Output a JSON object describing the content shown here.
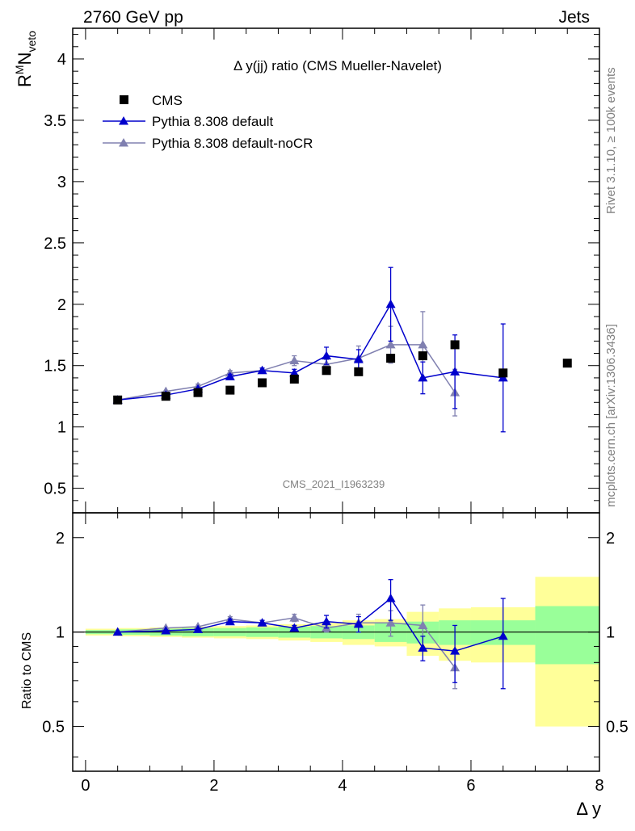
{
  "header": {
    "energy_label": "2760 GeV pp",
    "process_label": "Jets",
    "plot_title": "Δ y(jj) ratio (CMS Mueller-Navelet)",
    "watermark": "CMS_2021_I1963239",
    "side_text_top": "Rivet 3.1.10, ≥ 100k events",
    "side_text_bottom": "mcplots.cern.ch [arXiv:1306.3436]"
  },
  "colors": {
    "cms": "#000000",
    "pythia_default": "#0000cc",
    "pythia_nocr": "#8080b0",
    "band_inner": "#99ff99",
    "band_outer": "#ffff99"
  },
  "chart_data": [
    {
      "type": "scatter",
      "title": "Δ y(jj) ratio (CMS Mueller-Navelet)",
      "xlabel": "Δ y",
      "ylabel": "R^M N_veto",
      "ylabel_parts": {
        "base": "R",
        "sup": "M",
        "main": "N",
        "sub": "veto"
      },
      "xlim": [
        -0.2,
        8.0
      ],
      "ylim": [
        0.3,
        4.25
      ],
      "yticks": [
        "0.5",
        "1",
        "1.5",
        "2",
        "2.5",
        "3",
        "3.5",
        "4"
      ],
      "legend": {
        "placement": "top-left",
        "entries": [
          "CMS",
          "Pythia 8.308 default",
          "Pythia 8.308 default-noCR"
        ]
      },
      "series": [
        {
          "name": "CMS",
          "x": [
            0.5,
            1.25,
            1.75,
            2.25,
            2.75,
            3.25,
            3.75,
            4.25,
            4.75,
            5.25,
            5.75,
            6.5,
            7.5
          ],
          "y": [
            1.22,
            1.25,
            1.28,
            1.3,
            1.36,
            1.39,
            1.46,
            1.45,
            1.56,
            1.58,
            1.67,
            1.44,
            1.52
          ]
        },
        {
          "name": "Pythia 8.308 default",
          "x": [
            0.5,
            1.25,
            1.75,
            2.25,
            2.75,
            3.25,
            3.75,
            4.25,
            4.75,
            5.25,
            5.75,
            6.5
          ],
          "y": [
            1.22,
            1.26,
            1.31,
            1.41,
            1.46,
            1.44,
            1.58,
            1.55,
            2.0,
            1.4,
            1.45,
            1.4
          ],
          "err": [
            0.01,
            0.01,
            0.01,
            0.02,
            0.02,
            0.03,
            0.07,
            0.08,
            0.3,
            0.13,
            0.3,
            0.44
          ]
        },
        {
          "name": "Pythia 8.308 default-noCR",
          "x": [
            0.5,
            1.25,
            1.75,
            2.25,
            2.75,
            3.25,
            3.75,
            4.25,
            4.75,
            5.25,
            5.75
          ],
          "y": [
            1.22,
            1.29,
            1.33,
            1.44,
            1.46,
            1.54,
            1.51,
            1.56,
            1.67,
            1.67,
            1.28
          ],
          "err": [
            0.01,
            0.01,
            0.02,
            0.02,
            0.02,
            0.04,
            0.04,
            0.1,
            0.15,
            0.27,
            0.19
          ]
        }
      ]
    },
    {
      "type": "scatter",
      "xlabel": "Δ y",
      "ylabel": "Ratio to CMS",
      "xlim": [
        -0.2,
        8.0
      ],
      "ylim": [
        0.36,
        2.4
      ],
      "log_scale_y": true,
      "yticks": [
        "0.5",
        "1",
        "2"
      ],
      "xticks": [
        "0",
        "2",
        "4",
        "6",
        "8"
      ],
      "bands": {
        "bins": [
          [
            0,
            0.5
          ],
          [
            0.5,
            1.0
          ],
          [
            1.0,
            1.5
          ],
          [
            1.5,
            2.0
          ],
          [
            2.0,
            2.5
          ],
          [
            2.5,
            3.0
          ],
          [
            3.0,
            3.5
          ],
          [
            3.5,
            4.0
          ],
          [
            4.0,
            4.5
          ],
          [
            4.5,
            5.0
          ],
          [
            5.0,
            5.5
          ],
          [
            5.5,
            6.0
          ],
          [
            6.0,
            7.0
          ],
          [
            7.0,
            8.0
          ]
        ],
        "inner": [
          0.015,
          0.02,
          0.025,
          0.03,
          0.03,
          0.035,
          0.04,
          0.045,
          0.05,
          0.07,
          0.08,
          0.09,
          0.09,
          0.21
        ],
        "outer": [
          0.025,
          0.03,
          0.035,
          0.04,
          0.045,
          0.05,
          0.06,
          0.07,
          0.09,
          0.1,
          0.16,
          0.19,
          0.2,
          0.5
        ]
      },
      "series": [
        {
          "name": "Pythia 8.308 default",
          "x": [
            0.5,
            1.25,
            1.75,
            2.25,
            2.75,
            3.25,
            3.75,
            4.25,
            4.75,
            5.25,
            5.75,
            6.5
          ],
          "y": [
            1.0,
            1.01,
            1.02,
            1.08,
            1.07,
            1.03,
            1.08,
            1.06,
            1.28,
            0.89,
            0.87,
            0.97
          ],
          "err": [
            0.01,
            0.01,
            0.01,
            0.02,
            0.02,
            0.02,
            0.05,
            0.06,
            0.19,
            0.08,
            0.18,
            0.31
          ]
        },
        {
          "name": "Pythia 8.308 default-noCR",
          "x": [
            0.5,
            1.25,
            1.75,
            2.25,
            2.75,
            3.25,
            3.75,
            4.25,
            4.75,
            5.25,
            5.75
          ],
          "y": [
            1.0,
            1.03,
            1.04,
            1.1,
            1.07,
            1.11,
            1.03,
            1.07,
            1.07,
            1.05,
            0.77
          ],
          "err": [
            0.01,
            0.01,
            0.01,
            0.02,
            0.02,
            0.03,
            0.03,
            0.07,
            0.1,
            0.17,
            0.11
          ]
        }
      ]
    }
  ]
}
